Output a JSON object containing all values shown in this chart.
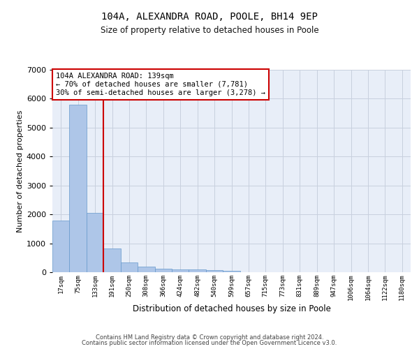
{
  "title1": "104A, ALEXANDRA ROAD, POOLE, BH14 9EP",
  "title2": "Size of property relative to detached houses in Poole",
  "xlabel": "Distribution of detached houses by size in Poole",
  "ylabel": "Number of detached properties",
  "annotation_title": "104A ALEXANDRA ROAD: 139sqm",
  "annotation_line1": "← 70% of detached houses are smaller (7,781)",
  "annotation_line2": "30% of semi-detached houses are larger (3,278) →",
  "footer1": "Contains HM Land Registry data © Crown copyright and database right 2024.",
  "footer2": "Contains public sector information licensed under the Open Government Licence v3.0.",
  "bin_labels": [
    "17sqm",
    "75sqm",
    "133sqm",
    "191sqm",
    "250sqm",
    "308sqm",
    "366sqm",
    "424sqm",
    "482sqm",
    "540sqm",
    "599sqm",
    "657sqm",
    "715sqm",
    "773sqm",
    "831sqm",
    "889sqm",
    "947sqm",
    "1006sqm",
    "1064sqm",
    "1122sqm",
    "1180sqm"
  ],
  "bar_heights": [
    1780,
    5800,
    2060,
    820,
    340,
    185,
    120,
    100,
    90,
    65,
    60,
    0,
    0,
    0,
    0,
    0,
    0,
    0,
    0,
    0,
    0
  ],
  "bar_color": "#aec6e8",
  "bar_edge_color": "#6699cc",
  "red_line_bar_index": 2,
  "annotation_box_color": "#cc0000",
  "ylim": [
    0,
    7000
  ],
  "yticks": [
    0,
    1000,
    2000,
    3000,
    4000,
    5000,
    6000,
    7000
  ],
  "grid_color": "#c8d0de",
  "bg_color": "#e8eef8"
}
